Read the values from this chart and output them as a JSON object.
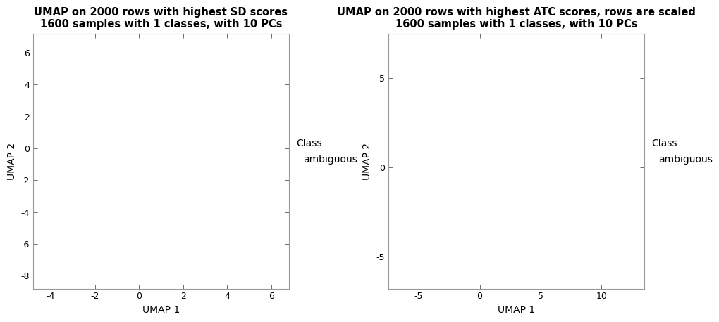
{
  "plot1": {
    "title_line1": "UMAP on 2000 rows with highest SD scores",
    "title_line2": "1600 samples with 1 classes, with 10 PCs",
    "xlabel": "UMAP 1",
    "ylabel": "UMAP 2",
    "xlim": [
      -4.8,
      6.8
    ],
    "ylim": [
      -8.8,
      7.2
    ],
    "xticks": [
      -4,
      -2,
      0,
      2,
      4,
      6
    ],
    "yticks": [
      -8,
      -6,
      -4,
      -2,
      0,
      2,
      4,
      6
    ],
    "legend_title": "Class",
    "legend_label": "ambiguous"
  },
  "plot2": {
    "title_line1": "UMAP on 2000 rows with highest ATC scores, rows are scaled",
    "title_line2": "1600 samples with 1 classes, with 10 PCs",
    "xlabel": "UMAP 1",
    "ylabel": "UMAP 2",
    "xlim": [
      -7.5,
      13.5
    ],
    "ylim": [
      -6.8,
      7.5
    ],
    "xticks": [
      -5,
      0,
      5,
      10
    ],
    "yticks": [
      -5,
      0,
      5
    ],
    "legend_title": "Class",
    "legend_label": "ambiguous"
  },
  "background_color": "#ffffff",
  "plot_bg_color": "#ffffff",
  "border_color": "#999999",
  "title_fontsize": 10.5,
  "axis_label_fontsize": 10,
  "tick_fontsize": 9,
  "legend_fontsize": 10
}
